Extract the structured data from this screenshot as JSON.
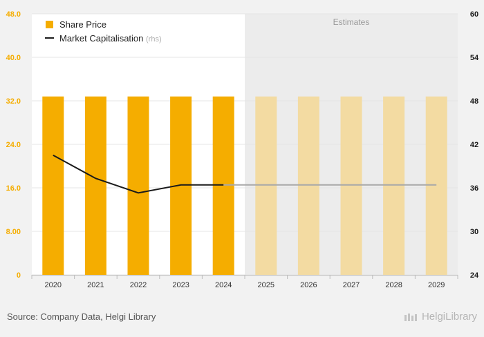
{
  "chart_data": {
    "type": "bar+line",
    "categories": [
      "2020",
      "2021",
      "2022",
      "2023",
      "2024",
      "2025",
      "2026",
      "2027",
      "2028",
      "2029"
    ],
    "estimates_label": "Estimates",
    "estimates_start_index": 5,
    "left_axis": {
      "ticks": [
        0,
        8,
        16,
        24,
        32,
        40,
        48
      ],
      "tick_labels": [
        "0",
        "8.00",
        "16.0",
        "24.0",
        "32.0",
        "40.0",
        "48.0"
      ],
      "ylim": [
        0,
        48
      ]
    },
    "right_axis": {
      "ticks": [
        24,
        30,
        36,
        42,
        48,
        54,
        60
      ],
      "tick_labels": [
        "24",
        "30",
        "36",
        "42",
        "48",
        "54",
        "60"
      ],
      "ylim": [
        24,
        60
      ]
    },
    "series": [
      {
        "name": "Share Price",
        "type": "bar",
        "axis": "left",
        "color": "#f5ad00",
        "estimate_color": "#f3dba2",
        "values": [
          32.8,
          32.8,
          32.8,
          32.8,
          32.8,
          32.8,
          32.8,
          32.8,
          32.8,
          32.8
        ]
      },
      {
        "name": "Market Capitalisation",
        "name_suffix": "(rhs)",
        "type": "line",
        "axis": "right",
        "color": "#1a1a1a",
        "estimate_color": "#a8a8a8",
        "values": [
          40.5,
          37.3,
          35.3,
          36.4,
          36.4,
          36.4,
          36.4,
          36.4,
          36.4,
          36.4
        ]
      }
    ],
    "legend_position": "top-left",
    "grid": true
  },
  "footer": {
    "source": "Source: Company Data, Helgi Library",
    "brand": "HelgiLibrary"
  }
}
